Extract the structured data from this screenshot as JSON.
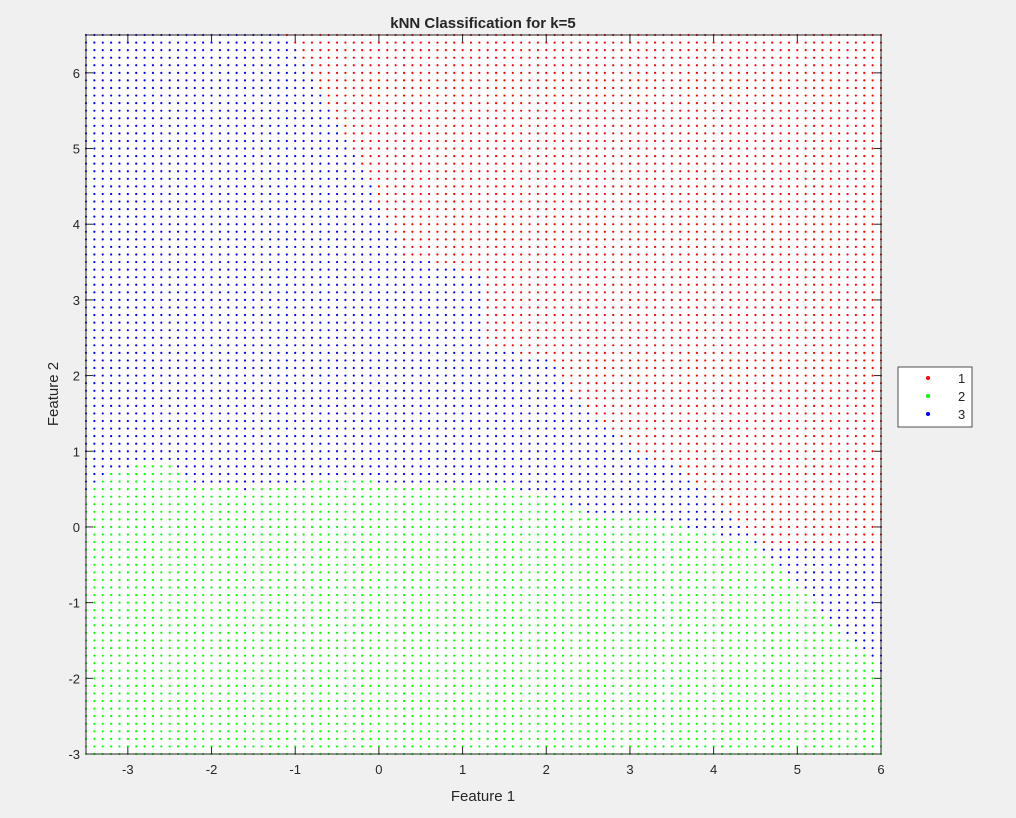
{
  "chart_data": {
    "type": "scatter",
    "title": "kNN Classification for k=5",
    "xlabel": "Feature 1",
    "ylabel": "Feature 2",
    "xlim": [
      -3.5,
      6
    ],
    "ylim": [
      -3,
      6.5
    ],
    "xticks": [
      -3,
      -2,
      -1,
      0,
      1,
      2,
      3,
      4,
      5,
      6
    ],
    "yticks": [
      -3,
      -2,
      -1,
      0,
      1,
      2,
      3,
      4,
      5,
      6
    ],
    "grid": false,
    "legend_position": "outside-right",
    "grid_step": 0.1,
    "series": [
      {
        "name": "1",
        "color": "#ff0000"
      },
      {
        "name": "2",
        "color": "#00ff00"
      },
      {
        "name": "3",
        "color": "#0000ff"
      }
    ],
    "region_boundaries": {
      "class2_top_boundary": [
        [
          -3.5,
          0.45
        ],
        [
          -3.2,
          0.75
        ],
        [
          -2.5,
          0.9
        ],
        [
          -2.2,
          0.55
        ],
        [
          -1.6,
          0.5
        ],
        [
          -0.5,
          0.65
        ],
        [
          0.5,
          0.55
        ],
        [
          1.5,
          0.55
        ],
        [
          2.2,
          0.35
        ],
        [
          2.6,
          0.15
        ],
        [
          3.0,
          0.2
        ],
        [
          3.5,
          0.05
        ],
        [
          4.5,
          -0.2
        ],
        [
          6.0,
          -1.9
        ]
      ],
      "class1_boundary": [
        [
          -1.1,
          6.5
        ],
        [
          -0.3,
          5.0
        ],
        [
          0.3,
          3.6
        ],
        [
          1.3,
          3.3
        ],
        [
          1.3,
          2.4
        ],
        [
          2.1,
          2.2
        ],
        [
          2.2,
          1.9
        ],
        [
          3.0,
          1.0
        ],
        [
          3.6,
          0.8
        ],
        [
          4.5,
          -0.2
        ],
        [
          6.0,
          -1.9
        ]
      ]
    }
  }
}
